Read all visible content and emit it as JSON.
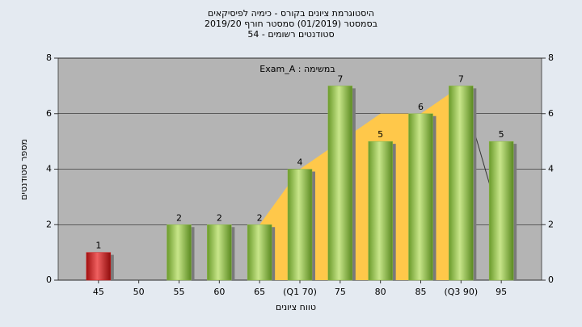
{
  "chart_data": {
    "type": "bar",
    "title": [
      "היסטוגרמת ציונים בקורס - כימיה לפיסיקאים",
      "בסמסטר (01/2019) סמסטר חורף 2019/20",
      "סטודנטים רשומים - 54"
    ],
    "annotation": "במשימה : Exam_A",
    "x_label": "טווח ציונים",
    "y_label": "מספר סטודנטים",
    "categories": [
      "45",
      "50",
      "55",
      "60",
      "65",
      "(Q1 70)",
      "75",
      "80",
      "85",
      "(Q3 90)",
      "95"
    ],
    "values": [
      1,
      0,
      2,
      2,
      2,
      4,
      7,
      5,
      6,
      7,
      5
    ],
    "colors": [
      "#d42020",
      "#8cb84a",
      "#8cb84a",
      "#8cb84a",
      "#8cb84a",
      "#8cb84a",
      "#8cb84a",
      "#8cb84a",
      "#8cb84a",
      "#8cb84a",
      "#8cb84a"
    ],
    "trend": {
      "color": "#ffc84a",
      "line_color": "#333333",
      "values": [
        null,
        null,
        null,
        null,
        2,
        4,
        5,
        6,
        6,
        7,
        2
      ]
    },
    "ylim": [
      0,
      8
    ],
    "yticks": [
      0,
      2,
      4,
      6,
      8
    ],
    "y2lim": [
      0,
      8
    ],
    "y2ticks": [
      0,
      2,
      4,
      6,
      8
    ]
  }
}
